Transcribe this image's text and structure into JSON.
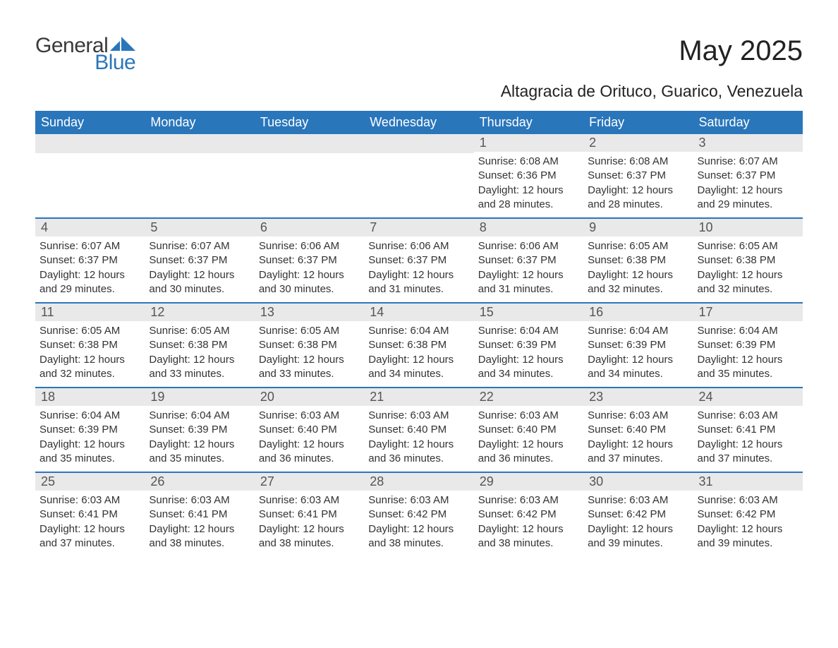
{
  "colors": {
    "brand_blue": "#2a76bb",
    "header_bg": "#2a76bb",
    "header_text": "#ffffff",
    "daynum_bg": "#e9e9e9",
    "daynum_text": "#555555",
    "body_text": "#333333",
    "page_bg": "#ffffff",
    "logo_gray": "#3a3a3a"
  },
  "logo": {
    "word1": "General",
    "word2": "Blue"
  },
  "title": "May 2025",
  "subtitle": "Altagracia de Orituco, Guarico, Venezuela",
  "weekdays": [
    "Sunday",
    "Monday",
    "Tuesday",
    "Wednesday",
    "Thursday",
    "Friday",
    "Saturday"
  ],
  "weeks": [
    [
      {
        "empty": true
      },
      {
        "empty": true
      },
      {
        "empty": true
      },
      {
        "empty": true
      },
      {
        "num": "1",
        "sunrise": "Sunrise: 6:08 AM",
        "sunset": "Sunset: 6:36 PM",
        "daylight": "Daylight: 12 hours and 28 minutes."
      },
      {
        "num": "2",
        "sunrise": "Sunrise: 6:08 AM",
        "sunset": "Sunset: 6:37 PM",
        "daylight": "Daylight: 12 hours and 28 minutes."
      },
      {
        "num": "3",
        "sunrise": "Sunrise: 6:07 AM",
        "sunset": "Sunset: 6:37 PM",
        "daylight": "Daylight: 12 hours and 29 minutes."
      }
    ],
    [
      {
        "num": "4",
        "sunrise": "Sunrise: 6:07 AM",
        "sunset": "Sunset: 6:37 PM",
        "daylight": "Daylight: 12 hours and 29 minutes."
      },
      {
        "num": "5",
        "sunrise": "Sunrise: 6:07 AM",
        "sunset": "Sunset: 6:37 PM",
        "daylight": "Daylight: 12 hours and 30 minutes."
      },
      {
        "num": "6",
        "sunrise": "Sunrise: 6:06 AM",
        "sunset": "Sunset: 6:37 PM",
        "daylight": "Daylight: 12 hours and 30 minutes."
      },
      {
        "num": "7",
        "sunrise": "Sunrise: 6:06 AM",
        "sunset": "Sunset: 6:37 PM",
        "daylight": "Daylight: 12 hours and 31 minutes."
      },
      {
        "num": "8",
        "sunrise": "Sunrise: 6:06 AM",
        "sunset": "Sunset: 6:37 PM",
        "daylight": "Daylight: 12 hours and 31 minutes."
      },
      {
        "num": "9",
        "sunrise": "Sunrise: 6:05 AM",
        "sunset": "Sunset: 6:38 PM",
        "daylight": "Daylight: 12 hours and 32 minutes."
      },
      {
        "num": "10",
        "sunrise": "Sunrise: 6:05 AM",
        "sunset": "Sunset: 6:38 PM",
        "daylight": "Daylight: 12 hours and 32 minutes."
      }
    ],
    [
      {
        "num": "11",
        "sunrise": "Sunrise: 6:05 AM",
        "sunset": "Sunset: 6:38 PM",
        "daylight": "Daylight: 12 hours and 32 minutes."
      },
      {
        "num": "12",
        "sunrise": "Sunrise: 6:05 AM",
        "sunset": "Sunset: 6:38 PM",
        "daylight": "Daylight: 12 hours and 33 minutes."
      },
      {
        "num": "13",
        "sunrise": "Sunrise: 6:05 AM",
        "sunset": "Sunset: 6:38 PM",
        "daylight": "Daylight: 12 hours and 33 minutes."
      },
      {
        "num": "14",
        "sunrise": "Sunrise: 6:04 AM",
        "sunset": "Sunset: 6:38 PM",
        "daylight": "Daylight: 12 hours and 34 minutes."
      },
      {
        "num": "15",
        "sunrise": "Sunrise: 6:04 AM",
        "sunset": "Sunset: 6:39 PM",
        "daylight": "Daylight: 12 hours and 34 minutes."
      },
      {
        "num": "16",
        "sunrise": "Sunrise: 6:04 AM",
        "sunset": "Sunset: 6:39 PM",
        "daylight": "Daylight: 12 hours and 34 minutes."
      },
      {
        "num": "17",
        "sunrise": "Sunrise: 6:04 AM",
        "sunset": "Sunset: 6:39 PM",
        "daylight": "Daylight: 12 hours and 35 minutes."
      }
    ],
    [
      {
        "num": "18",
        "sunrise": "Sunrise: 6:04 AM",
        "sunset": "Sunset: 6:39 PM",
        "daylight": "Daylight: 12 hours and 35 minutes."
      },
      {
        "num": "19",
        "sunrise": "Sunrise: 6:04 AM",
        "sunset": "Sunset: 6:39 PM",
        "daylight": "Daylight: 12 hours and 35 minutes."
      },
      {
        "num": "20",
        "sunrise": "Sunrise: 6:03 AM",
        "sunset": "Sunset: 6:40 PM",
        "daylight": "Daylight: 12 hours and 36 minutes."
      },
      {
        "num": "21",
        "sunrise": "Sunrise: 6:03 AM",
        "sunset": "Sunset: 6:40 PM",
        "daylight": "Daylight: 12 hours and 36 minutes."
      },
      {
        "num": "22",
        "sunrise": "Sunrise: 6:03 AM",
        "sunset": "Sunset: 6:40 PM",
        "daylight": "Daylight: 12 hours and 36 minutes."
      },
      {
        "num": "23",
        "sunrise": "Sunrise: 6:03 AM",
        "sunset": "Sunset: 6:40 PM",
        "daylight": "Daylight: 12 hours and 37 minutes."
      },
      {
        "num": "24",
        "sunrise": "Sunrise: 6:03 AM",
        "sunset": "Sunset: 6:41 PM",
        "daylight": "Daylight: 12 hours and 37 minutes."
      }
    ],
    [
      {
        "num": "25",
        "sunrise": "Sunrise: 6:03 AM",
        "sunset": "Sunset: 6:41 PM",
        "daylight": "Daylight: 12 hours and 37 minutes."
      },
      {
        "num": "26",
        "sunrise": "Sunrise: 6:03 AM",
        "sunset": "Sunset: 6:41 PM",
        "daylight": "Daylight: 12 hours and 38 minutes."
      },
      {
        "num": "27",
        "sunrise": "Sunrise: 6:03 AM",
        "sunset": "Sunset: 6:41 PM",
        "daylight": "Daylight: 12 hours and 38 minutes."
      },
      {
        "num": "28",
        "sunrise": "Sunrise: 6:03 AM",
        "sunset": "Sunset: 6:42 PM",
        "daylight": "Daylight: 12 hours and 38 minutes."
      },
      {
        "num": "29",
        "sunrise": "Sunrise: 6:03 AM",
        "sunset": "Sunset: 6:42 PM",
        "daylight": "Daylight: 12 hours and 38 minutes."
      },
      {
        "num": "30",
        "sunrise": "Sunrise: 6:03 AM",
        "sunset": "Sunset: 6:42 PM",
        "daylight": "Daylight: 12 hours and 39 minutes."
      },
      {
        "num": "31",
        "sunrise": "Sunrise: 6:03 AM",
        "sunset": "Sunset: 6:42 PM",
        "daylight": "Daylight: 12 hours and 39 minutes."
      }
    ]
  ]
}
